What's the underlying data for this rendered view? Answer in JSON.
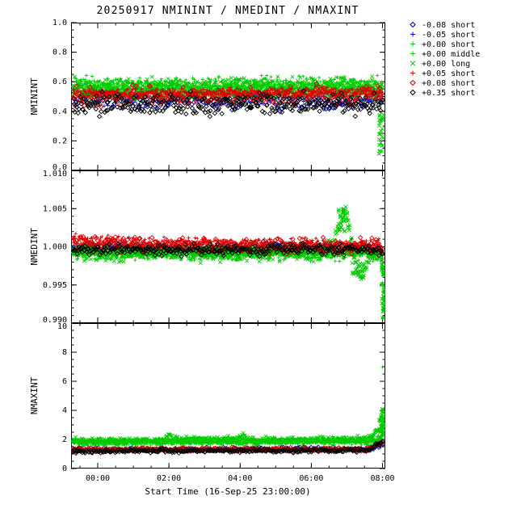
{
  "chart_data": {
    "type": "scatter",
    "title": "20250917 NMININT / NMEDINT / NMAXINT",
    "xlabel": "Start Time (16-Sep-25 23:00:00)",
    "xlim_hours_from_midnight": [
      -0.75,
      8.08
    ],
    "x_minor_step_hours": 0.5,
    "x_ticks": [
      {
        "hour": 0,
        "label": "00:00"
      },
      {
        "hour": 2,
        "label": "02:00"
      },
      {
        "hour": 4,
        "label": "04:00"
      },
      {
        "hour": 6,
        "label": "06:00"
      },
      {
        "hour": 8,
        "label": "08:00"
      }
    ],
    "legend": [
      {
        "label": "-0.08 short",
        "color": "#000090",
        "symbol": "diamond"
      },
      {
        "label": "-0.05 short",
        "color": "#0000ff",
        "symbol": "plus"
      },
      {
        "label": "+0.00 short",
        "color": "#00cc00",
        "symbol": "plus"
      },
      {
        "label": "+0.00 middle",
        "color": "#00cc00",
        "symbol": "plus"
      },
      {
        "label": "+0.00 long",
        "color": "#00cc00",
        "symbol": "cross"
      },
      {
        "label": "+0.05 short",
        "color": "#e00000",
        "symbol": "plus"
      },
      {
        "label": "+0.08 short",
        "color": "#e00000",
        "symbol": "diamond"
      },
      {
        "label": "+0.35 short",
        "color": "#000000",
        "symbol": "diamond"
      }
    ],
    "panels": [
      {
        "ylabel": "NMININT",
        "ylim": [
          0.0,
          1.0
        ],
        "yminor": 0.05,
        "yticks": [
          0.0,
          0.2,
          0.4,
          0.6,
          0.8,
          1.0
        ],
        "ytick_labels": [
          "0.0",
          "0.2",
          "0.4",
          "0.6",
          "0.8",
          "1.0"
        ],
        "series": [
          {
            "name": "-0.08 short",
            "symbol": "diamond",
            "color": "#000090",
            "n": 170,
            "sigma": 0.03,
            "keys": [
              [
                -0.75,
                0.475
              ],
              [
                8.05,
                0.47
              ]
            ]
          },
          {
            "name": "-0.05 short",
            "symbol": "plus",
            "color": "#0000ff",
            "n": 170,
            "sigma": 0.025,
            "keys": [
              [
                -0.75,
                0.49
              ],
              [
                8.05,
                0.485
              ]
            ]
          },
          {
            "name": "+0.00 short",
            "symbol": "plus",
            "color": "#00cc00",
            "n": 520,
            "sigma": 0.028,
            "keys": [
              [
                -0.75,
                0.545
              ],
              [
                8.05,
                0.55
              ]
            ]
          },
          {
            "name": "+0.00 middle",
            "symbol": "plus",
            "color": "#00cc00",
            "n": 520,
            "sigma": 0.028,
            "keys": [
              [
                -0.75,
                0.575
              ],
              [
                8.05,
                0.575
              ]
            ]
          },
          {
            "name": "+0.00 long",
            "symbol": "cross",
            "color": "#00cc00",
            "n": 520,
            "sigma": 0.035,
            "keys": [
              [
                -0.75,
                0.555
              ],
              [
                8.05,
                0.56
              ]
            ],
            "extra": [
              {
                "t0": 7.9,
                "t1": 8.03,
                "y0": 0.08,
                "y1": 0.38,
                "n": 28
              }
            ]
          },
          {
            "name": "+0.05 short",
            "symbol": "plus",
            "color": "#e00000",
            "n": 520,
            "sigma": 0.016,
            "keys": [
              [
                -0.75,
                0.52
              ],
              [
                8.05,
                0.525
              ]
            ]
          },
          {
            "name": "+0.08 short",
            "symbol": "diamond",
            "color": "#e00000",
            "n": 240,
            "sigma": 0.032,
            "keys": [
              [
                -0.75,
                0.5
              ],
              [
                8.05,
                0.505
              ]
            ]
          },
          {
            "name": "+0.35 short",
            "symbol": "diamond",
            "color": "#000000",
            "n": 300,
            "sigma": 0.035,
            "keys": [
              [
                -0.75,
                0.445
              ],
              [
                8.05,
                0.45
              ]
            ]
          }
        ]
      },
      {
        "ylabel": "NMEDINT",
        "ylim": [
          0.99,
          1.01
        ],
        "yminor": 0.001,
        "yticks": [
          0.99,
          0.995,
          1.0,
          1.005,
          1.01
        ],
        "ytick_labels": [
          "0.990",
          "0.995",
          "1.000",
          "1.005",
          "1.010"
        ],
        "series": [
          {
            "name": "-0.08 short",
            "symbol": "diamond",
            "color": "#000090",
            "n": 170,
            "sigma": 0.00035,
            "keys": [
              [
                -0.75,
                0.9998
              ],
              [
                7.9,
                0.9997
              ],
              [
                8.05,
                0.9985
              ]
            ]
          },
          {
            "name": "-0.05 short",
            "symbol": "plus",
            "color": "#0000ff",
            "n": 170,
            "sigma": 0.0003,
            "keys": [
              [
                -0.75,
                0.9999
              ],
              [
                7.9,
                0.9998
              ],
              [
                8.05,
                0.9986
              ]
            ]
          },
          {
            "name": "+0.00 short",
            "symbol": "plus",
            "color": "#00cc00",
            "n": 500,
            "sigma": 0.0004,
            "keys": [
              [
                -0.75,
                0.9992
              ],
              [
                7.9,
                0.9991
              ],
              [
                8.05,
                0.998
              ]
            ],
            "extra": [
              {
                "t0": 8.0,
                "t1": 8.04,
                "y0": 0.9905,
                "y1": 0.9985,
                "n": 10
              }
            ]
          },
          {
            "name": "+0.00 middle",
            "symbol": "plus",
            "color": "#00cc00",
            "n": 500,
            "sigma": 0.0004,
            "keys": [
              [
                -0.75,
                0.9993
              ],
              [
                7.9,
                0.9992
              ],
              [
                8.05,
                0.998
              ]
            ],
            "extra": [
              {
                "t0": 8.0,
                "t1": 8.04,
                "y0": 0.991,
                "y1": 0.9985,
                "n": 10
              }
            ]
          },
          {
            "name": "+0.00 long",
            "symbol": "cross",
            "color": "#00cc00",
            "n": 500,
            "sigma": 0.0005,
            "keys": [
              [
                -0.75,
                0.9992
              ],
              [
                6.2,
                0.9992
              ],
              [
                6.6,
                1.0002
              ],
              [
                6.95,
                1.0047
              ],
              [
                7.05,
                1.003
              ],
              [
                7.25,
                0.9972
              ],
              [
                7.45,
                0.9963
              ],
              [
                7.65,
                0.9989
              ],
              [
                7.9,
                0.999
              ],
              [
                8.05,
                0.9975
              ]
            ],
            "extra": [
              {
                "t0": 6.75,
                "t1": 7.05,
                "y0": 1.002,
                "y1": 1.0052,
                "n": 30
              },
              {
                "t0": 7.15,
                "t1": 7.5,
                "y0": 0.996,
                "y1": 0.998,
                "n": 25
              },
              {
                "t0": 7.97,
                "t1": 8.04,
                "y0": 0.9905,
                "y1": 0.9985,
                "n": 25
              }
            ]
          },
          {
            "name": "+0.05 short",
            "symbol": "plus",
            "color": "#e00000",
            "n": 500,
            "sigma": 0.0004,
            "keys": [
              [
                -0.75,
                1.0009
              ],
              [
                0.0,
                1.0006
              ],
              [
                1.0,
                1.0004
              ],
              [
                3.0,
                1.0003
              ],
              [
                6.5,
                1.0002
              ],
              [
                7.9,
                1.0001
              ],
              [
                8.05,
                0.9988
              ]
            ]
          },
          {
            "name": "+0.08 short",
            "symbol": "diamond",
            "color": "#e00000",
            "n": 240,
            "sigma": 0.0005,
            "keys": [
              [
                -0.75,
                1.0006
              ],
              [
                1.0,
                1.0003
              ],
              [
                7.9,
                1.0001
              ],
              [
                8.05,
                0.9988
              ]
            ]
          },
          {
            "name": "+0.35 short",
            "symbol": "diamond",
            "color": "#000000",
            "n": 300,
            "sigma": 0.00035,
            "keys": [
              [
                -0.75,
                0.99965
              ],
              [
                7.9,
                0.9996
              ],
              [
                8.05,
                0.9983
              ]
            ]
          }
        ]
      },
      {
        "ylabel": "NMAXINT",
        "ylim": [
          0,
          10
        ],
        "yminor": 0.5,
        "yticks": [
          0,
          2,
          4,
          6,
          8,
          10
        ],
        "ytick_labels": [
          "0",
          "2",
          "4",
          "6",
          "8",
          "10"
        ],
        "series": [
          {
            "name": "-0.08 short",
            "symbol": "diamond",
            "color": "#000090",
            "n": 170,
            "sigma": 0.06,
            "keys": [
              [
                -0.75,
                1.32
              ],
              [
                7.7,
                1.35
              ],
              [
                8.05,
                1.7
              ]
            ]
          },
          {
            "name": "-0.05 short",
            "symbol": "plus",
            "color": "#0000ff",
            "n": 170,
            "sigma": 0.05,
            "keys": [
              [
                -0.75,
                1.3
              ],
              [
                7.7,
                1.32
              ],
              [
                8.05,
                1.65
              ]
            ]
          },
          {
            "name": "+0.00 short",
            "symbol": "plus",
            "color": "#00cc00",
            "n": 520,
            "sigma": 0.09,
            "keys": [
              [
                -0.75,
                1.78
              ],
              [
                7.8,
                1.85
              ],
              [
                8.05,
                2.3
              ]
            ],
            "extra": [
              {
                "t0": 7.95,
                "t1": 8.05,
                "y0": 2.2,
                "y1": 3.4,
                "n": 12
              },
              {
                "t0": 7.99,
                "t1": 8.01,
                "y0": 6.95,
                "y1": 7.05,
                "n": 1
              }
            ]
          },
          {
            "name": "+0.00 middle",
            "symbol": "plus",
            "color": "#00cc00",
            "n": 520,
            "sigma": 0.09,
            "keys": [
              [
                -0.75,
                1.9
              ],
              [
                7.8,
                1.95
              ],
              [
                8.05,
                2.4
              ]
            ],
            "extra": [
              {
                "t0": 7.95,
                "t1": 8.05,
                "y0": 2.2,
                "y1": 3.2,
                "n": 10
              }
            ]
          },
          {
            "name": "+0.00 long",
            "symbol": "cross",
            "color": "#00cc00",
            "n": 520,
            "sigma": 0.12,
            "keys": [
              [
                -0.75,
                1.85
              ],
              [
                1.85,
                1.88
              ],
              [
                1.98,
                2.4
              ],
              [
                2.12,
                1.95
              ],
              [
                3.95,
                1.98
              ],
              [
                4.1,
                2.25
              ],
              [
                4.25,
                1.95
              ],
              [
                6.0,
                1.95
              ],
              [
                7.6,
                2.0
              ],
              [
                8.05,
                2.9
              ]
            ],
            "extra": [
              {
                "t0": 7.9,
                "t1": 8.05,
                "y0": 2.3,
                "y1": 4.15,
                "n": 30
              }
            ]
          },
          {
            "name": "+0.05 short",
            "symbol": "plus",
            "color": "#e00000",
            "n": 520,
            "sigma": 0.05,
            "keys": [
              [
                -0.75,
                1.27
              ],
              [
                7.6,
                1.3
              ],
              [
                8.05,
                1.85
              ]
            ]
          },
          {
            "name": "+0.08 short",
            "symbol": "diamond",
            "color": "#e00000",
            "n": 240,
            "sigma": 0.06,
            "keys": [
              [
                -0.75,
                1.3
              ],
              [
                7.6,
                1.32
              ],
              [
                8.05,
                1.85
              ]
            ]
          },
          {
            "name": "+0.35 short",
            "symbol": "diamond",
            "color": "#000000",
            "n": 300,
            "sigma": 0.06,
            "keys": [
              [
                -0.75,
                1.2
              ],
              [
                7.6,
                1.24
              ],
              [
                8.05,
                1.95
              ]
            ]
          }
        ]
      }
    ]
  }
}
